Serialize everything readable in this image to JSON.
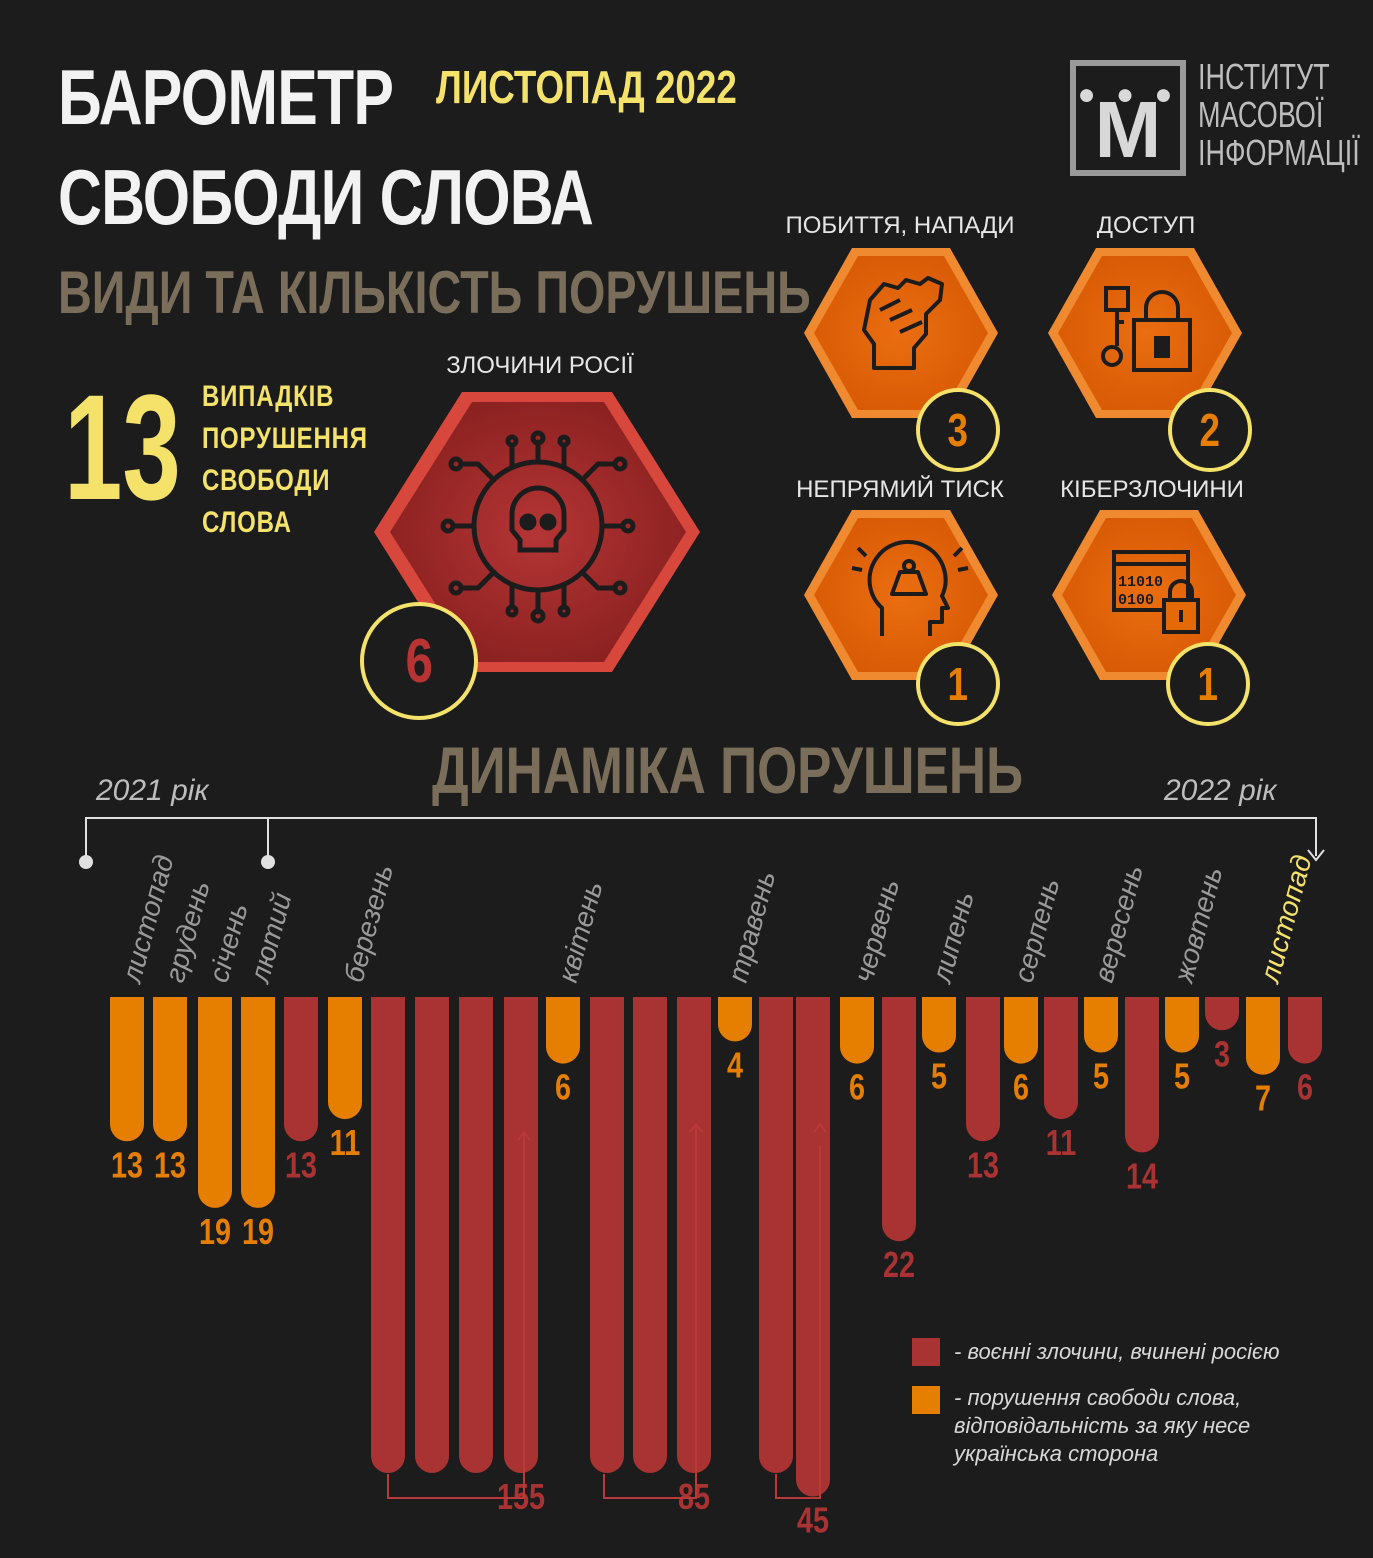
{
  "header": {
    "title_line1": "БАРОМЕТР",
    "title_line2": "СВОБОДИ СЛОВА",
    "month": "ЛИСТОПАД 2022",
    "subtitle": "ВИДИ ТА КІЛЬКІСТЬ ПОРУШЕНЬ"
  },
  "logo": {
    "letter": "М",
    "line1": "ІНСТИТУТ",
    "line2": "МАСОВОЇ",
    "line3": "ІНФОРМАЦІЇ"
  },
  "total": {
    "value": "13",
    "line1": "ВИПАДКІВ",
    "line2": "ПОРУШЕННЯ",
    "line3": "СВОБОДИ",
    "line4": "СЛОВА"
  },
  "categories": {
    "russia": {
      "label": "ЗЛОЧИНИ РОСІЇ",
      "count": "6",
      "icon": "virus-skull-icon"
    },
    "beatings": {
      "label": "ПОБИТТЯ, НАПАДИ",
      "count": "3",
      "icon": "fist-icon"
    },
    "access": {
      "label": "ДОСТУП",
      "count": "2",
      "icon": "key-lock-icon"
    },
    "pressure": {
      "label": "НЕПРЯМИЙ ТИСК",
      "count": "1",
      "icon": "head-weight-icon"
    },
    "cyber": {
      "label": "КІБЕРЗЛОЧИНИ",
      "count": "1",
      "icon": "binary-lock-icon"
    }
  },
  "dynamics": {
    "title": "ДИНАМІКА ПОРУШЕНЬ",
    "year_start": "2021 рік",
    "year_end": "2022 рік"
  },
  "legend": {
    "red": "- воєнні злочини, вчинені росією",
    "orange_line1": "- порушення свободи слова,",
    "orange_line2": "відповідальність за яку несе",
    "orange_line3": "українська сторона"
  },
  "colors": {
    "red": "#a93232",
    "orange": "#e67e00",
    "yellow": "#f4e26a",
    "background": "#1c1c1c"
  },
  "chart_data": {
    "type": "bar",
    "orientation": "downward",
    "series": [
      {
        "name": "воєнні злочини, вчинені росією",
        "color": "#a93232"
      },
      {
        "name": "порушення свободи слова, відповідальність за яку несе українська сторона",
        "color": "#e67e00"
      }
    ],
    "months": [
      {
        "label": "листопад",
        "highlight": false
      },
      {
        "label": "грудень",
        "highlight": false
      },
      {
        "label": "січень",
        "highlight": false
      },
      {
        "label": "лютий",
        "highlight": false
      },
      {
        "label": "березень",
        "highlight": false
      },
      {
        "label": "квітень",
        "highlight": false
      },
      {
        "label": "травень",
        "highlight": false
      },
      {
        "label": "червень",
        "highlight": false
      },
      {
        "label": "липень",
        "highlight": false
      },
      {
        "label": "серпень",
        "highlight": false
      },
      {
        "label": "вересень",
        "highlight": false
      },
      {
        "label": "жовтень",
        "highlight": false
      },
      {
        "label": "листопад",
        "highlight": true
      }
    ],
    "bars": [
      {
        "series": 1,
        "value": 13
      },
      {
        "series": 1,
        "value": 13
      },
      {
        "series": 1,
        "value": 19
      },
      {
        "series": 1,
        "value": 19
      },
      {
        "series": 0,
        "value": 13
      },
      {
        "series": 1,
        "value": 11
      },
      {
        "series": 0,
        "value": null
      },
      {
        "series": 0,
        "value": null
      },
      {
        "series": 0,
        "value": null
      },
      {
        "series": 0,
        "value": 155
      },
      {
        "series": 1,
        "value": 6
      },
      {
        "series": 0,
        "value": null
      },
      {
        "series": 0,
        "value": null
      },
      {
        "series": 0,
        "value": 85
      },
      {
        "series": 1,
        "value": 4
      },
      {
        "series": 0,
        "value": null
      },
      {
        "series": 0,
        "value": 45
      },
      {
        "series": 1,
        "value": 6
      },
      {
        "series": 0,
        "value": 22
      },
      {
        "series": 1,
        "value": 5
      },
      {
        "series": 0,
        "value": 13
      },
      {
        "series": 1,
        "value": 6
      },
      {
        "series": 0,
        "value": 11
      },
      {
        "series": 1,
        "value": 5
      },
      {
        "series": 0,
        "value": 14
      },
      {
        "series": 1,
        "value": 5
      },
      {
        "series": 0,
        "value": 3
      },
      {
        "series": 1,
        "value": 7
      },
      {
        "series": 0,
        "value": 6
      }
    ]
  }
}
